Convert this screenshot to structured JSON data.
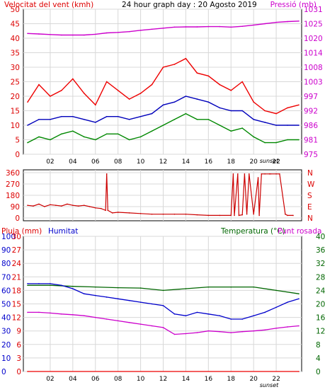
{
  "chart_data": [
    {
      "type": "line",
      "title": "24 hour graph day : 20 Agosto 2019",
      "left_axis_label": "Velocitat del vent (kmh)",
      "right_axis_label": "Pressió (mb)",
      "left_ylim": [
        0,
        50
      ],
      "left_ticks": [
        "0",
        "5",
        "10",
        "15",
        "20",
        "25",
        "30",
        "35",
        "40",
        "45",
        "50"
      ],
      "right_ylim": [
        975,
        1030
      ],
      "right_ticks": [
        "975",
        "981",
        "986",
        "992",
        "997",
        "1003",
        "1008",
        "1014",
        "1020",
        "1025",
        "1031"
      ],
      "x_ticks": [
        "02",
        "04",
        "06",
        "08",
        "10",
        "12",
        "14",
        "16",
        "18",
        "20",
        "22"
      ],
      "x_marker": "sunset",
      "grid": true,
      "series": [
        {
          "axis": "right",
          "color": "#cc00cc",
          "x": [
            0,
            1,
            2,
            3,
            4,
            5,
            6,
            7,
            8,
            9,
            10,
            11,
            12,
            13,
            14,
            15,
            16,
            17,
            18,
            19,
            20,
            21,
            22,
            23,
            24
          ],
          "values": [
            1020.8,
            1020.6,
            1020.4,
            1020.2,
            1020.2,
            1020.2,
            1020.5,
            1021.0,
            1021.2,
            1021.5,
            1022.0,
            1022.4,
            1022.8,
            1023.2,
            1023.3,
            1023.3,
            1023.4,
            1023.4,
            1023.2,
            1023.5,
            1024.0,
            1024.5,
            1025.0,
            1025.3,
            1025.5
          ]
        },
        {
          "axis": "left",
          "color": "#ee0000",
          "x": [
            0,
            1,
            2,
            3,
            4,
            5,
            6,
            7,
            8,
            9,
            10,
            11,
            12,
            13,
            14,
            15,
            16,
            17,
            18,
            19,
            20,
            21,
            22,
            23,
            24
          ],
          "values": [
            18,
            24,
            20,
            22,
            26,
            21,
            17,
            25,
            22,
            19,
            21,
            24,
            30,
            31,
            33,
            28,
            27,
            24,
            22,
            25,
            18,
            15,
            14,
            16,
            17
          ]
        },
        {
          "axis": "left",
          "color": "#0000bb",
          "x": [
            0,
            1,
            2,
            3,
            4,
            5,
            6,
            7,
            8,
            9,
            10,
            11,
            12,
            13,
            14,
            15,
            16,
            17,
            18,
            19,
            20,
            21,
            22,
            23,
            24
          ],
          "values": [
            10,
            12,
            12,
            13,
            13,
            12,
            11,
            13,
            13,
            12,
            13,
            14,
            17,
            18,
            20,
            19,
            18,
            16,
            15,
            15,
            12,
            11,
            10,
            10,
            10
          ]
        },
        {
          "axis": "left",
          "color": "#008800",
          "x": [
            0,
            1,
            2,
            3,
            4,
            5,
            6,
            7,
            8,
            9,
            10,
            11,
            12,
            13,
            14,
            15,
            16,
            17,
            18,
            19,
            20,
            21,
            22,
            23,
            24
          ],
          "values": [
            4,
            6,
            5,
            7,
            8,
            6,
            5,
            7,
            7,
            5,
            6,
            8,
            10,
            12,
            14,
            12,
            12,
            10,
            8,
            9,
            6,
            4,
            4,
            5,
            5
          ]
        }
      ]
    },
    {
      "type": "line",
      "left_ylim": [
        0,
        360
      ],
      "left_ticks": [
        "0",
        "90",
        "180",
        "270",
        "360"
      ],
      "right_labels": [
        "N",
        "W",
        "S",
        "E",
        "N"
      ],
      "series": [
        {
          "color": "#cc0000",
          "x": [
            0,
            0.5,
            1,
            1.5,
            2,
            2.5,
            3,
            3.5,
            4,
            4.5,
            5,
            5.5,
            6,
            6.5,
            6.9,
            7.0,
            7.1,
            7.5,
            8,
            9,
            10,
            11,
            12,
            13,
            14,
            15,
            16,
            17,
            18,
            18.2,
            18.3,
            18.6,
            18.7,
            19,
            19.2,
            19.4,
            19.6,
            20,
            20.4,
            20.5,
            20.7,
            21,
            21.4,
            21.5,
            22,
            22.3,
            22.8,
            23,
            23.5
          ],
          "values": [
            100,
            95,
            110,
            90,
            105,
            100,
            95,
            110,
            100,
            95,
            100,
            90,
            80,
            75,
            60,
            350,
            60,
            40,
            45,
            40,
            35,
            30,
            30,
            30,
            30,
            25,
            20,
            20,
            20,
            350,
            20,
            350,
            20,
            25,
            350,
            30,
            350,
            30,
            320,
            20,
            350,
            350,
            350,
            350,
            350,
            350,
            30,
            20,
            20
          ]
        }
      ]
    },
    {
      "type": "line",
      "left_axis_label": "Pluja (mm)",
      "left_axis_label_2": "Humitat",
      "right_axis_label": "Temperatura (°C)",
      "right_axis_label_2": "Punt rosada",
      "humidity_ylim": [
        0,
        100
      ],
      "humidity_ticks": [
        "0",
        "10",
        "20",
        "30",
        "40",
        "50",
        "60",
        "70",
        "80",
        "90",
        "100"
      ],
      "rain_ylim": [
        0,
        30
      ],
      "rain_ticks": [
        "0",
        "3",
        "6",
        "9",
        "12",
        "15",
        "18",
        "21",
        "24",
        "27",
        "30"
      ],
      "temp_ylim": [
        0,
        40
      ],
      "temp_ticks": [
        "0",
        "4",
        "8",
        "12",
        "16",
        "20",
        "24",
        "28",
        "32",
        "36",
        "40"
      ],
      "x_ticks": [
        "02",
        "04",
        "06",
        "08",
        "10",
        "12",
        "14",
        "16",
        "18",
        "20",
        "22"
      ],
      "x_marker": "sunset",
      "series": [
        {
          "axis": "temp",
          "color": "#006600",
          "x": [
            0,
            2,
            4,
            6,
            8,
            10,
            12,
            14,
            16,
            18,
            20,
            22,
            24
          ],
          "values": [
            25.5,
            25.5,
            25.2,
            25,
            24.8,
            24.7,
            24,
            24.5,
            25,
            25,
            25,
            24,
            23
          ]
        },
        {
          "axis": "temp",
          "color": "#0000cc",
          "x": [
            0,
            1,
            2,
            3,
            4,
            5,
            6,
            7,
            8,
            9,
            10,
            11,
            12,
            13,
            14,
            15,
            16,
            17,
            18,
            19,
            20,
            21,
            22,
            23,
            24
          ],
          "values": [
            26.0,
            26.0,
            26.0,
            25.5,
            24.5,
            23.0,
            22.5,
            22.0,
            21.5,
            21.0,
            20.5,
            20.0,
            19.5,
            17.0,
            16.5,
            17.5,
            17.0,
            16.5,
            15.5,
            15.5,
            16.5,
            17.5,
            19.0,
            20.5,
            21.5
          ]
        },
        {
          "axis": "temp",
          "color": "#cc00cc",
          "x": [
            0,
            1,
            2,
            3,
            4,
            5,
            6,
            7,
            8,
            9,
            10,
            11,
            12,
            13,
            14,
            15,
            16,
            17,
            18,
            19,
            20,
            21,
            22,
            23,
            24
          ],
          "values": [
            17.5,
            17.5,
            17.3,
            17.0,
            16.8,
            16.5,
            16.0,
            15.5,
            15.0,
            14.5,
            14.0,
            13.5,
            13.0,
            11.0,
            11.2,
            11.5,
            12.0,
            11.8,
            11.5,
            11.8,
            12.0,
            12.3,
            12.8,
            13.2,
            13.5
          ]
        },
        {
          "axis": "rain",
          "color": "#ee0000",
          "x": [
            0,
            24
          ],
          "values": [
            0,
            0
          ]
        }
      ]
    }
  ],
  "colors": {
    "frame": "#000000",
    "grid": "#d8d8d8",
    "wind_axis": "#dd0000",
    "pressure_axis": "#cc00cc",
    "humidity_axis": "#0000cc",
    "rain_axis": "#dd0000",
    "temp_axis": "#006600",
    "dew_axis": "#cc00cc"
  }
}
